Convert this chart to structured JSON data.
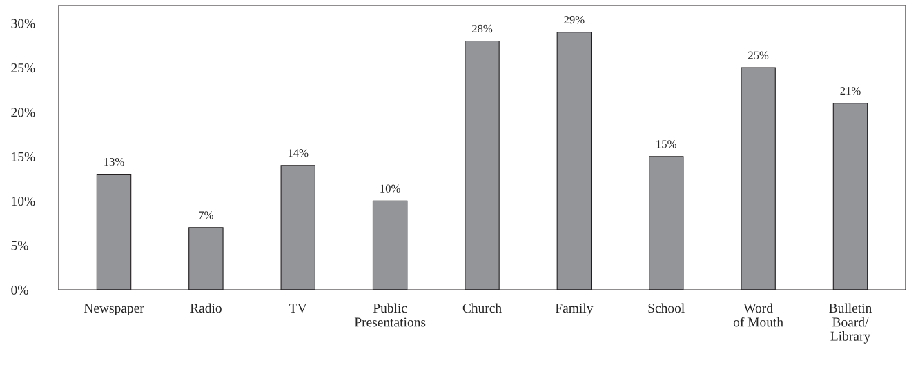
{
  "chart_data": {
    "type": "bar",
    "categories": [
      "Newspaper",
      "Radio",
      "TV",
      "Public\nPresentations",
      "Church",
      "Family",
      "School",
      "Word\nof Mouth",
      "Bulletin\nBoard/\nLibrary"
    ],
    "values": [
      13,
      7,
      14,
      10,
      28,
      29,
      15,
      25,
      21
    ],
    "color": "#939598",
    "ylim": [
      0,
      32
    ],
    "yticks": [
      {
        "value": 0,
        "label": "0%"
      },
      {
        "value": 5,
        "label": "5%"
      },
      {
        "value": 10,
        "label": "10%"
      },
      {
        "value": 15,
        "label": "15%"
      },
      {
        "value": 20,
        "label": "20%"
      },
      {
        "value": 25,
        "label": "25%"
      },
      {
        "value": 30,
        "label": "30%"
      }
    ],
    "value_labels": [
      "13%",
      "7%",
      "14%",
      "10%",
      "28%",
      "29%",
      "15%",
      "25%",
      "21%"
    ],
    "grid": false,
    "legend": false
  }
}
